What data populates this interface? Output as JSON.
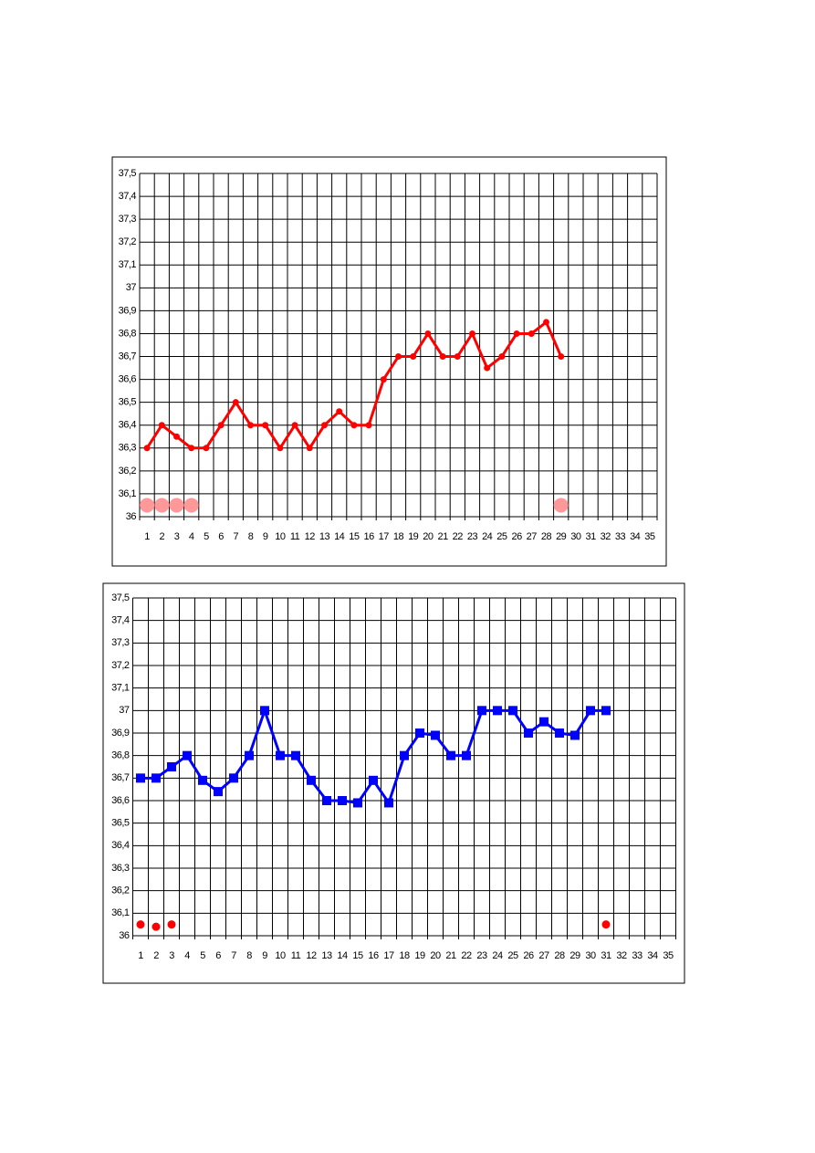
{
  "chart_data": [
    {
      "type": "line",
      "x": [
        1,
        2,
        3,
        4,
        5,
        6,
        7,
        8,
        9,
        10,
        11,
        12,
        13,
        14,
        15,
        16,
        17,
        18,
        19,
        20,
        21,
        22,
        23,
        24,
        25,
        26,
        27,
        28,
        29,
        30,
        31,
        32,
        33,
        34,
        35
      ],
      "ylim": [
        36,
        37.5
      ],
      "yticks": [
        36,
        {
          "value": 36.1,
          "label": "36,1"
        },
        {
          "value": 36.2,
          "label": "36,2"
        },
        {
          "value": 36.3,
          "label": "36,3"
        },
        {
          "value": 36.4,
          "label": "36,4"
        },
        {
          "value": 36.5,
          "label": "36,5"
        },
        {
          "value": 36.6,
          "label": "36,6"
        },
        {
          "value": 36.7,
          "label": "36,7"
        },
        {
          "value": 36.8,
          "label": "36,8"
        },
        {
          "value": 36.9,
          "label": "36,9"
        },
        37,
        {
          "value": 37.1,
          "label": "37,1"
        },
        {
          "value": 37.2,
          "label": "37,2"
        },
        {
          "value": 37.3,
          "label": "37,3"
        },
        {
          "value": 37.4,
          "label": "37,4"
        },
        {
          "value": 37.5,
          "label": "37,5"
        }
      ],
      "grid": true,
      "series": [
        {
          "color": "#ff0000",
          "marker": "circle",
          "line": true,
          "values": [
            36.3,
            36.4,
            36.35,
            36.3,
            36.3,
            36.4,
            36.5,
            36.4,
            36.4,
            36.3,
            36.4,
            36.3,
            36.4,
            36.46,
            36.4,
            36.4,
            36.6,
            36.7,
            36.7,
            36.8,
            36.7,
            36.7,
            36.8,
            36.65,
            36.7,
            36.8,
            36.8,
            36.85,
            36.7,
            null,
            null,
            null,
            null,
            null,
            null
          ]
        },
        {
          "color": "#ff9999",
          "marker": "big-circle",
          "line": false,
          "values": [
            36.05,
            36.05,
            36.05,
            36.05,
            null,
            null,
            null,
            null,
            null,
            null,
            null,
            null,
            null,
            null,
            null,
            null,
            null,
            null,
            null,
            null,
            null,
            null,
            null,
            null,
            null,
            null,
            null,
            null,
            36.05,
            null,
            null,
            null,
            null,
            null,
            null
          ]
        }
      ]
    },
    {
      "type": "line",
      "x": [
        1,
        2,
        3,
        4,
        5,
        6,
        7,
        8,
        9,
        10,
        11,
        12,
        13,
        14,
        15,
        16,
        17,
        18,
        19,
        20,
        21,
        22,
        23,
        24,
        25,
        26,
        27,
        28,
        29,
        30,
        31,
        32,
        33,
        34,
        35
      ],
      "ylim": [
        36,
        37.5
      ],
      "yticks": [
        36,
        {
          "value": 36.1,
          "label": "36,1"
        },
        {
          "value": 36.2,
          "label": "36,2"
        },
        {
          "value": 36.3,
          "label": "36,3"
        },
        {
          "value": 36.4,
          "label": "36,4"
        },
        {
          "value": 36.5,
          "label": "36,5"
        },
        {
          "value": 36.6,
          "label": "36,6"
        },
        {
          "value": 36.7,
          "label": "36,7"
        },
        {
          "value": 36.8,
          "label": "36,8"
        },
        {
          "value": 36.9,
          "label": "36,9"
        },
        37,
        {
          "value": 37.1,
          "label": "37,1"
        },
        {
          "value": 37.2,
          "label": "37,2"
        },
        {
          "value": 37.3,
          "label": "37,3"
        },
        {
          "value": 37.4,
          "label": "37,4"
        },
        {
          "value": 37.5,
          "label": "37,5"
        }
      ],
      "grid": true,
      "series": [
        {
          "color": "#0000ff",
          "marker": "square",
          "line": true,
          "values": [
            36.7,
            36.7,
            36.75,
            36.8,
            36.69,
            36.64,
            36.7,
            36.8,
            37.0,
            36.8,
            36.8,
            36.69,
            36.6,
            36.6,
            36.59,
            36.69,
            36.59,
            36.8,
            36.9,
            36.89,
            36.8,
            36.8,
            37.0,
            37.0,
            37.0,
            36.9,
            36.95,
            36.9,
            36.89,
            37.0,
            37.0,
            null,
            null,
            null,
            null
          ]
        },
        {
          "color": "#ff0000",
          "marker": "small-circle",
          "line": false,
          "values": [
            36.05,
            36.04,
            36.05,
            null,
            null,
            null,
            null,
            null,
            null,
            null,
            null,
            null,
            null,
            null,
            null,
            null,
            null,
            null,
            null,
            null,
            null,
            null,
            null,
            null,
            null,
            null,
            null,
            null,
            null,
            null,
            36.05,
            null,
            null,
            null,
            null
          ]
        }
      ]
    }
  ]
}
